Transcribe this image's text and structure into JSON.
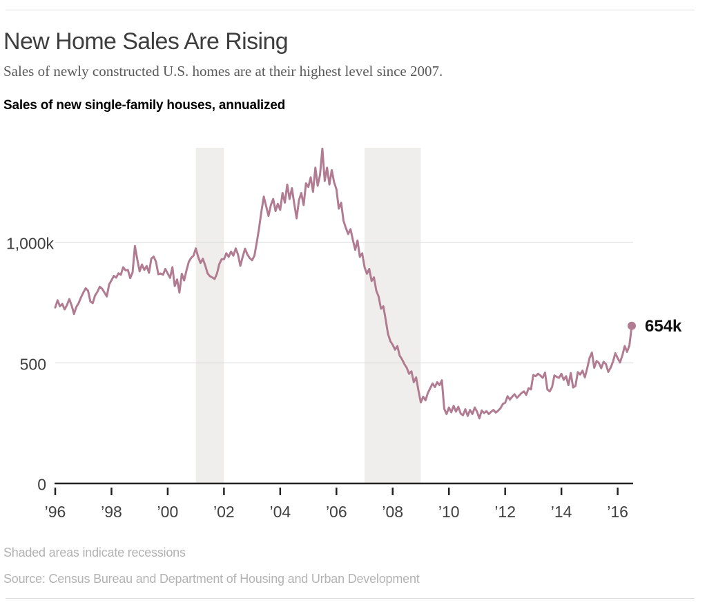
{
  "header": {
    "title": "New Home Sales Are Rising",
    "subtitle": "Sales of newly constructed U.S. homes are at their highest level since 2007.",
    "kicker": "Sales of new single-family houses, annualized"
  },
  "footer": {
    "note": "Shaded areas indicate recessions",
    "source": "Source: Census Bureau and Department of Housing and Urban Development"
  },
  "chart_data": {
    "type": "line",
    "title": "Sales of new single-family houses, annualized",
    "start": {
      "year": 1996,
      "month": 1
    },
    "end": {
      "year": 2016,
      "month": 7
    },
    "ylim": [
      0,
      1400
    ],
    "grid": "horizontal-only",
    "x_ticks": [
      {
        "year": 1996,
        "label": "’96"
      },
      {
        "year": 1998,
        "label": "’98"
      },
      {
        "year": 2000,
        "label": "’00"
      },
      {
        "year": 2002,
        "label": "’02"
      },
      {
        "year": 2004,
        "label": "’04"
      },
      {
        "year": 2006,
        "label": "’06"
      },
      {
        "year": 2008,
        "label": "’08"
      },
      {
        "year": 2010,
        "label": "’10"
      },
      {
        "year": 2012,
        "label": "’12"
      },
      {
        "year": 2014,
        "label": "’14"
      },
      {
        "year": 2016,
        "label": "’16"
      }
    ],
    "y_ticks": [
      {
        "value": 1000,
        "label": "1,000k"
      },
      {
        "value": 500,
        "label": "500"
      },
      {
        "value": 0,
        "label": "0"
      }
    ],
    "grid_values": [
      500,
      1000
    ],
    "recessions": [
      {
        "start_year": 2001,
        "end_year": 2002
      },
      {
        "start_year": 2007,
        "end_year": 2009
      }
    ],
    "end_label": "654k",
    "end_value": 654,
    "colors": {
      "line": "#b17c92",
      "recession_band": "#f0eeec",
      "gridline": "#d9d9d9",
      "axis": "#222222"
    },
    "series": [
      {
        "name": "Sales of new single-family houses, annualized (thousands)",
        "values": [
          730,
          760,
          735,
          745,
          722,
          740,
          765,
          738,
          703,
          732,
          748,
          772,
          792,
          810,
          800,
          755,
          748,
          780,
          795,
          816,
          808,
          792,
          776,
          826,
          843,
          861,
          854,
          872,
          866,
          897,
          884,
          886,
          852,
          875,
          985,
          930,
          880,
          908,
          886,
          902,
          874,
          933,
          941,
          920,
          868,
          871,
          866,
          890,
          871,
          853,
          897,
          819,
          846,
          792,
          870,
          842,
          884,
          920,
          936,
          945,
          975,
          940,
          915,
          932,
          905,
          872,
          860,
          855,
          848,
          870,
          910,
          930,
          930,
          955,
          940,
          962,
          945,
          975,
          950,
          903,
          940,
          974,
          950,
          935,
          926,
          945,
          1000,
          1060,
          1130,
          1190,
          1150,
          1110,
          1155,
          1180,
          1130,
          1160,
          1135,
          1205,
          1165,
          1240,
          1180,
          1225,
          1160,
          1100,
          1175,
          1205,
          1155,
          1245,
          1230,
          1270,
          1210,
          1310,
          1235,
          1280,
          1389,
          1255,
          1310,
          1240,
          1300,
          1250,
          1220,
          1140,
          1165,
          1090,
          1060,
          1035,
          1055,
          1010,
          969,
          1008,
          940,
          955,
          897,
          870,
          890,
          840,
          855,
          800,
          775,
          725,
          735,
          680,
          620,
          590,
          575,
          555,
          570,
          530,
          515,
          495,
          480,
          455,
          465,
          420,
          440,
          385,
          336,
          360,
          345,
          375,
          395,
          415,
          400,
          420,
          408,
          428,
          310,
          288,
          315,
          295,
          322,
          298,
          318,
          290,
          283,
          308,
          280,
          305,
          288,
          315,
          298,
          270,
          303,
          292,
          300,
          288,
          297,
          305,
          294,
          302,
          312,
          330,
          335,
          362,
          348,
          360,
          370,
          355,
          365,
          375,
          382,
          368,
          395,
          390,
          450,
          445,
          455,
          448,
          438,
          460,
          390,
          382,
          400,
          448,
          442,
          438,
          455,
          430,
          445,
          408,
          458,
          398,
          405,
          462,
          452,
          468,
          440,
          478,
          520,
          543,
          480,
          508,
          500,
          478,
          505,
          495,
          463,
          480,
          505,
          540,
          520,
          502,
          531,
          570,
          546,
          572,
          654
        ]
      }
    ]
  }
}
